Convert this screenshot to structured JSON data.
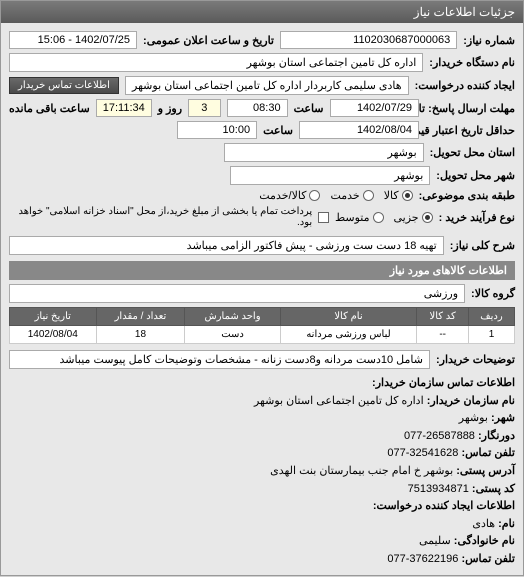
{
  "window_title": "جزئیات اطلاعات نیاز",
  "labels": {
    "shomare_niaz": "شماره نیاز:",
    "tarikh_elan": "تاریخ و ساعت اعلان عمومی:",
    "nam_dastgah": "نام دستگاه خریدار:",
    "ijad_konande": "ایجاد کننده درخواست:",
    "mohlat_ersal": "مهلت ارسال پاسخ: تا تاریخ:",
    "saat": "ساعت",
    "rooz_o": "روز و",
    "saat_baghi": "ساعت باقی مانده",
    "hadeaghal_tarikh": "حداقل تاریخ اعتبار قیمت: تا تاریخ:",
    "ostan_mahal": "استان محل تحویل:",
    "shahr_mahal": "شهر محل تحویل:",
    "tabaghebandi": "طبقه بندی موضوعی:",
    "noe_farayand": "نوع فرآیند خرید :",
    "sharh_koli": "شرح کلی نیاز:",
    "gorooh_kala": "گروه کالا:",
    "tozihat_kharidar": "توضیحات خریدار:"
  },
  "values": {
    "shomare_niaz": "1102030687000063",
    "tarikh_elan": "1402/07/25 - 15:06",
    "nam_dastgah": "اداره کل تامین اجتماعی استان بوشهر",
    "ijad_konande": "هادی سلیمی کاربردار اداره کل تامین اجتماعی استان بوشهر",
    "mohlat_tarikh": "1402/07/29",
    "mohlat_saat": "08:30",
    "rooz_baghi": "3",
    "saat_baghi": "17:11:34",
    "hadeaghal_tarikh": "1402/08/04",
    "hadeaghal_saat": "10:00",
    "ostan": "بوشهر",
    "shahr": "بوشهر",
    "note_farayand": "پرداخت تمام یا بخشی از مبلغ خرید،از محل \"اسناد خزانه اسلامی\" خواهد بود.",
    "sharh_koli": "تهیه 18 دست ست ورزشی - پیش فاکتور الزامی میباشد",
    "gorooh_kala": "ورزشی",
    "tozihat": "شامل 10دست مردانه و8دست زنانه - مشخصات وتوضیحات کامل پیوست میباشد"
  },
  "radio_options": {
    "kala": "کالا",
    "khedmat": "خدمت",
    "kala_khedmat": "کالا/خدمت",
    "jozei": "جزیی",
    "motevaset": "متوسط"
  },
  "buttons": {
    "etelaat_tamas": "اطلاعات تماس خریدار"
  },
  "section_headers": {
    "etelaat_kalaha": "اطلاعات کالاهای مورد نیاز",
    "etelaat_tamas_sazman": "اطلاعات تماس سازمان خریدار:",
    "etelaat_ijad_konande": "اطلاعات ایجاد کننده درخواست:"
  },
  "table": {
    "headers": [
      "ردیف",
      "کد کالا",
      "نام کالا",
      "واحد شمارش",
      "تعداد / مقدار",
      "تاریخ نیاز"
    ],
    "rows": [
      [
        "1",
        "--",
        "لباس ورزشی مردانه",
        "دست",
        "18",
        "1402/08/04"
      ]
    ]
  },
  "contact": {
    "nam_sazman_label": "نام سازمان خریدار:",
    "nam_sazman": "اداره کل تامین اجتماعی استان بوشهر",
    "shahr_label": "شهر:",
    "shahr": "بوشهر",
    "doornegar_label": "دورنگار:",
    "doornegar": "26587888-077",
    "telefon_tamas_label": "تلفن تماس:",
    "telefon_tamas": "32541628-077",
    "adres_posti_label": "آدرس پستی:",
    "adres_posti": "بوشهر خ امام جنب بیمارستان بنت الهدی",
    "kod_posti_label": "کد پستی:",
    "kod_posti": "7513934871",
    "nam_label": "نام:",
    "nam": "هادی",
    "nam_khanevadegi_label": "نام خانوادگی:",
    "nam_khanevadegi": "سلیمی",
    "telefon2_label": "تلفن تماس:",
    "telefon2": "37622196-077"
  }
}
